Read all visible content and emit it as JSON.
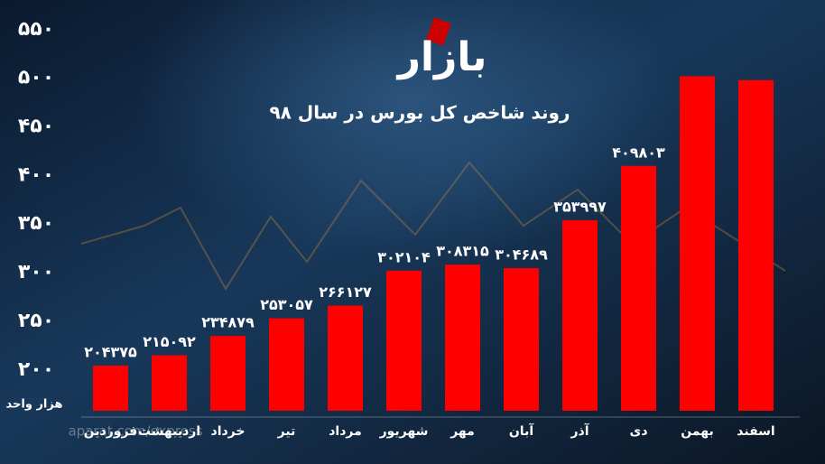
{
  "chart_data": {
    "type": "bar",
    "title": "روند شاخص کل بورس در سال ۹۸",
    "logo": "بازار",
    "watermark": "aparat.com/express",
    "y_unit_label": "هزار واحد",
    "categories": [
      "فروردین",
      "اردیبهشت",
      "خرداد",
      "تیر",
      "مرداد",
      "شهریور",
      "مهر",
      "آبان",
      "آذر",
      "دی",
      "بهمن",
      "اسفند"
    ],
    "values": [
      204.375,
      215.092,
      234.879,
      253.057,
      266.127,
      302.104,
      308.315,
      304.689,
      353.997,
      409.803,
      502,
      498
    ],
    "value_labels": [
      "۲۰۴۳۷۵",
      "۲۱۵۰۹۲",
      "۲۳۴۸۷۹",
      "۲۵۳۰۵۷",
      "۲۶۶۱۲۷",
      "۳۰۲۱۰۴",
      "۳۰۸۳۱۵",
      "۳۰۴۶۸۹",
      "۳۵۳۹۹۷",
      "۴۰۹۸۰۳",
      null,
      null
    ],
    "color": "#ff0000",
    "ylim": [
      158,
      560
    ],
    "yticks": [
      {
        "value": 200,
        "label": "۲۰۰"
      },
      {
        "value": 250,
        "label": "۲۵۰"
      },
      {
        "value": 300,
        "label": "۳۰۰"
      },
      {
        "value": 350,
        "label": "۳۵۰"
      },
      {
        "value": 400,
        "label": "۴۰۰"
      },
      {
        "value": 450,
        "label": "۴۵۰"
      },
      {
        "value": 500,
        "label": "۵۰۰"
      },
      {
        "value": 550,
        "label": "۵۵۰"
      }
    ],
    "grid": false
  }
}
